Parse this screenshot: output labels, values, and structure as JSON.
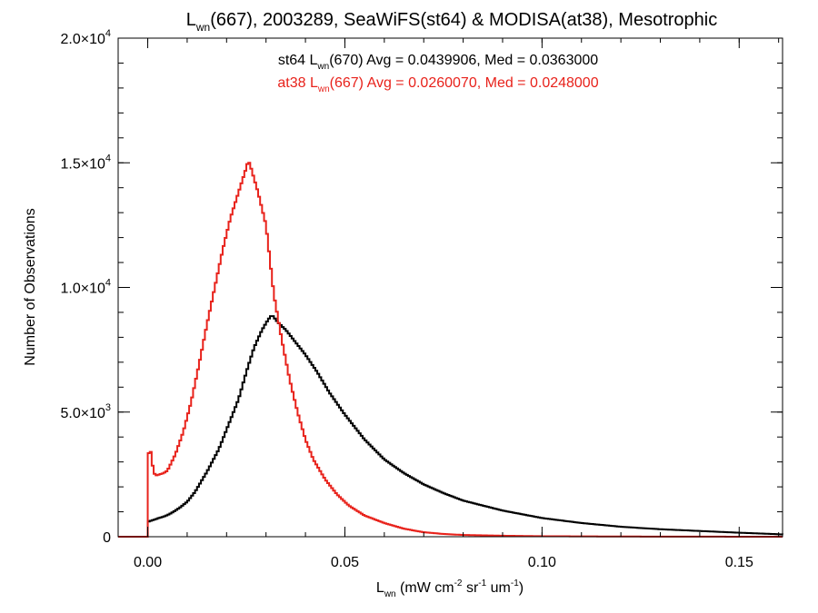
{
  "chart_data": {
    "type": "histogram",
    "title": {
      "main": "L",
      "sub": "wn",
      "rest": "(667), 2003289, SeaWiFS(st64) & MODISA(at38), Mesotrophic"
    },
    "xlabel": {
      "main": "L",
      "sub": "wn",
      "rest": " (mW cm",
      "sup1": "-2",
      "mid": " sr",
      "sup2": "-1",
      "tail": " um",
      "sup3": "-1",
      "end": ")"
    },
    "ylabel": "Number of Observations",
    "xlim": [
      -0.0075,
      0.161
    ],
    "ylim": [
      0,
      20000
    ],
    "grid": false,
    "x_ticks": [
      {
        "value": 0.0,
        "label": "0.00"
      },
      {
        "value": 0.05,
        "label": "0.05"
      },
      {
        "value": 0.1,
        "label": "0.10"
      },
      {
        "value": 0.15,
        "label": "0.15"
      }
    ],
    "y_ticks": [
      {
        "value": 0,
        "mant": "0",
        "exp": ""
      },
      {
        "value": 5000,
        "mant": "5.0×10",
        "exp": "3"
      },
      {
        "value": 10000,
        "mant": "1.0×10",
        "exp": "4"
      },
      {
        "value": 15000,
        "mant": "1.5×10",
        "exp": "4"
      },
      {
        "value": 20000,
        "mant": "2.0×10",
        "exp": "4"
      }
    ],
    "x_minor_step": 0.01,
    "y_minor_step": 1000,
    "legend": [
      {
        "pre": "st64 L",
        "sub": "wn",
        "post": "(670) Avg = 0.0439906, Med = 0.0363000",
        "color": "#000000"
      },
      {
        "pre": "at38 L",
        "sub": "wn",
        "post": "(667) Avg = 0.0260070, Med = 0.0248000",
        "color": "#e8221b"
      }
    ],
    "series": [
      {
        "color": "#000000",
        "points": [
          [
            -0.0075,
            0
          ],
          [
            0.0,
            0
          ],
          [
            0.0,
            600
          ],
          [
            0.001,
            650
          ],
          [
            0.002,
            700
          ],
          [
            0.003,
            760
          ],
          [
            0.004,
            800
          ],
          [
            0.005,
            870
          ],
          [
            0.006,
            950
          ],
          [
            0.008,
            1150
          ],
          [
            0.01,
            1400
          ],
          [
            0.012,
            1800
          ],
          [
            0.015,
            2600
          ],
          [
            0.018,
            3500
          ],
          [
            0.02,
            4300
          ],
          [
            0.023,
            5500
          ],
          [
            0.025,
            6600
          ],
          [
            0.027,
            7600
          ],
          [
            0.029,
            8300
          ],
          [
            0.0305,
            8700
          ],
          [
            0.0315,
            8900
          ],
          [
            0.033,
            8600
          ],
          [
            0.035,
            8300
          ],
          [
            0.037,
            7900
          ],
          [
            0.04,
            7300
          ],
          [
            0.043,
            6600
          ],
          [
            0.046,
            5800
          ],
          [
            0.05,
            4900
          ],
          [
            0.055,
            3900
          ],
          [
            0.06,
            3100
          ],
          [
            0.065,
            2550
          ],
          [
            0.07,
            2100
          ],
          [
            0.075,
            1750
          ],
          [
            0.08,
            1450
          ],
          [
            0.09,
            1050
          ],
          [
            0.1,
            750
          ],
          [
            0.11,
            550
          ],
          [
            0.12,
            400
          ],
          [
            0.13,
            300
          ],
          [
            0.14,
            230
          ],
          [
            0.15,
            160
          ],
          [
            0.16,
            100
          ],
          [
            0.161,
            90
          ]
        ]
      },
      {
        "color": "#e8221b",
        "points": [
          [
            -0.0075,
            0
          ],
          [
            0.0,
            0
          ],
          [
            0.0,
            3000
          ],
          [
            0.0005,
            3700
          ],
          [
            0.001,
            3100
          ],
          [
            0.0015,
            2600
          ],
          [
            0.002,
            2450
          ],
          [
            0.004,
            2550
          ],
          [
            0.005,
            2650
          ],
          [
            0.007,
            3300
          ],
          [
            0.009,
            4200
          ],
          [
            0.011,
            5400
          ],
          [
            0.013,
            6900
          ],
          [
            0.015,
            8500
          ],
          [
            0.017,
            10000
          ],
          [
            0.019,
            11500
          ],
          [
            0.021,
            12800
          ],
          [
            0.023,
            13800
          ],
          [
            0.025,
            14800
          ],
          [
            0.0255,
            15100
          ],
          [
            0.026,
            14900
          ],
          [
            0.028,
            13800
          ],
          [
            0.03,
            12500
          ],
          [
            0.032,
            9700
          ],
          [
            0.034,
            7900
          ],
          [
            0.036,
            6300
          ],
          [
            0.038,
            5000
          ],
          [
            0.04,
            3900
          ],
          [
            0.042,
            3100
          ],
          [
            0.045,
            2300
          ],
          [
            0.048,
            1700
          ],
          [
            0.051,
            1250
          ],
          [
            0.055,
            850
          ],
          [
            0.06,
            550
          ],
          [
            0.065,
            320
          ],
          [
            0.07,
            180
          ],
          [
            0.075,
            110
          ],
          [
            0.08,
            70
          ],
          [
            0.09,
            40
          ],
          [
            0.1,
            20
          ],
          [
            0.12,
            8
          ],
          [
            0.14,
            3
          ],
          [
            0.161,
            1
          ]
        ]
      }
    ]
  }
}
